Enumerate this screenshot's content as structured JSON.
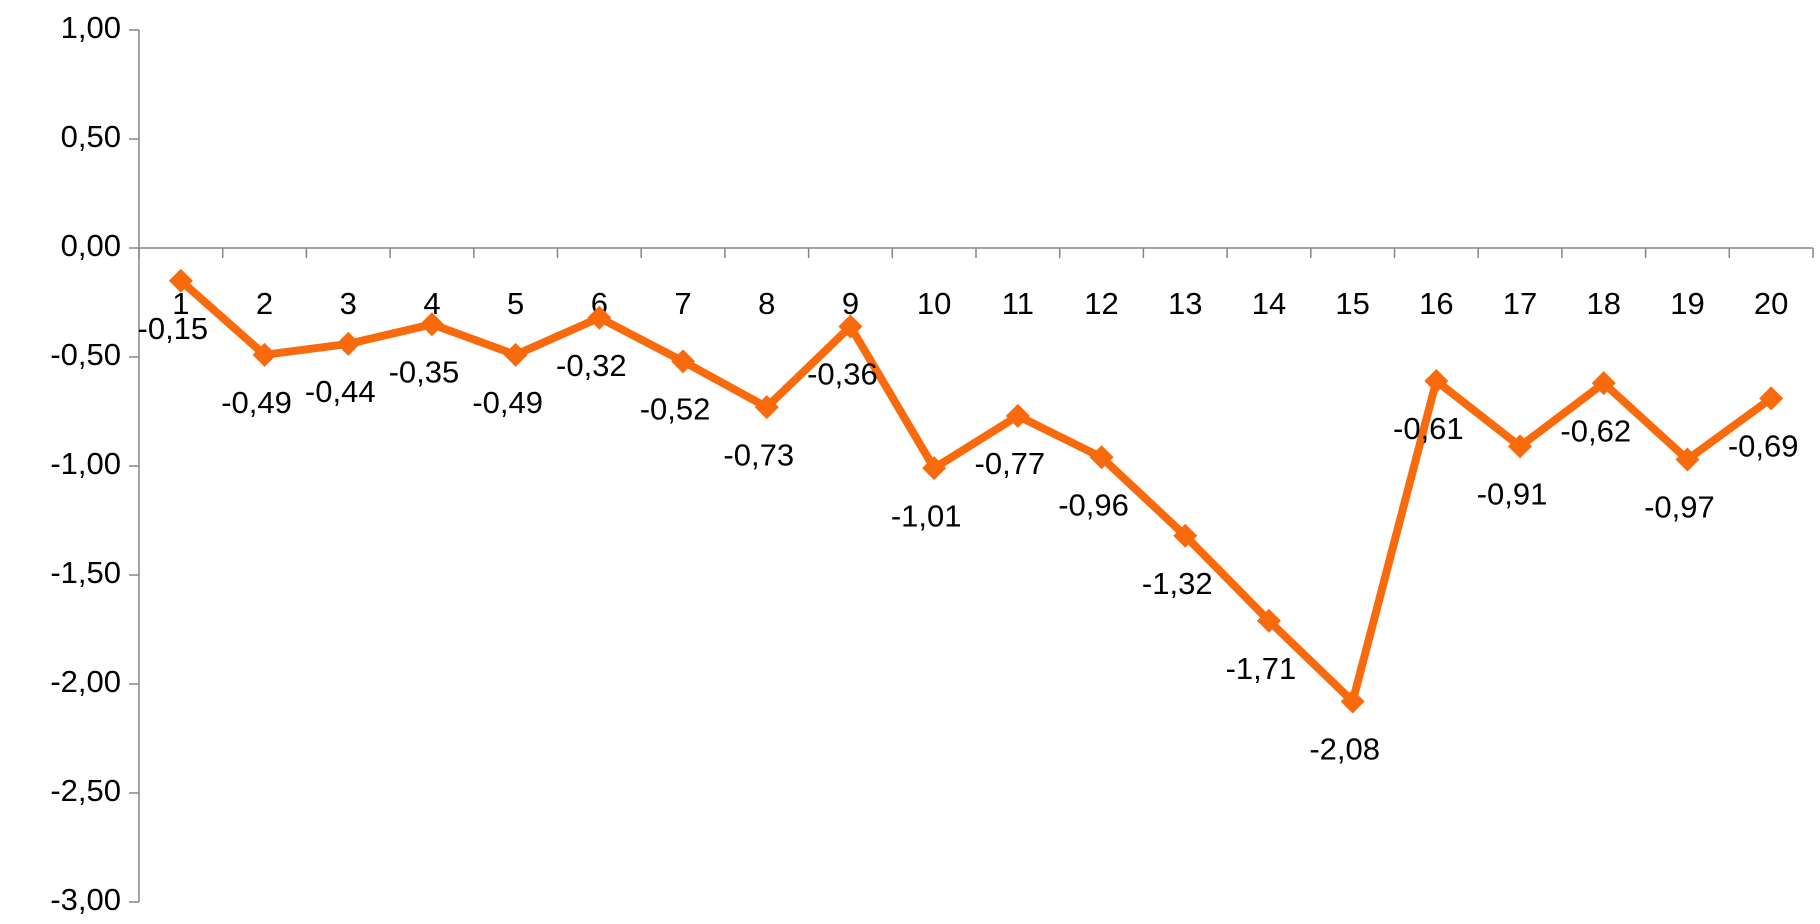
{
  "chart_data": {
    "type": "line",
    "categories": [
      "1",
      "2",
      "3",
      "4",
      "5",
      "6",
      "7",
      "8",
      "9",
      "10",
      "11",
      "12",
      "13",
      "14",
      "15",
      "16",
      "17",
      "18",
      "19",
      "20"
    ],
    "series": [
      {
        "color": "#f96a0c",
        "values": [
          -0.15,
          -0.49,
          -0.44,
          -0.35,
          -0.49,
          -0.32,
          -0.52,
          -0.73,
          -0.36,
          -1.01,
          -0.77,
          -0.96,
          -1.32,
          -1.71,
          -2.08,
          -0.61,
          -0.91,
          -0.62,
          -0.97,
          -0.69
        ],
        "value_labels": [
          "-0,15",
          "-0,49",
          "-0,44",
          "-0,35",
          "-0,49",
          "-0,32",
          "-0,52",
          "-0,73",
          "-0,36",
          "-1,01",
          "-0,77",
          "-0,96",
          "-1,32",
          "-1,71",
          "-2,08",
          "-0,61",
          "-0,91",
          "-0,62",
          "-0,97",
          "-0,69"
        ]
      }
    ],
    "ylim": [
      -3,
      1
    ],
    "yticks": [
      {
        "value": 1,
        "label": "1,00"
      },
      {
        "value": 0.5,
        "label": "0,50"
      },
      {
        "value": 0,
        "label": "0,00"
      },
      {
        "value": -0.5,
        "label": "-0,50"
      },
      {
        "value": -1,
        "label": "-1,00"
      },
      {
        "value": -1.5,
        "label": "-1,50"
      },
      {
        "value": -2,
        "label": "-2,00"
      },
      {
        "value": -2.5,
        "label": "-2,50"
      },
      {
        "value": -3,
        "label": "-3,00"
      }
    ],
    "grid": false
  }
}
